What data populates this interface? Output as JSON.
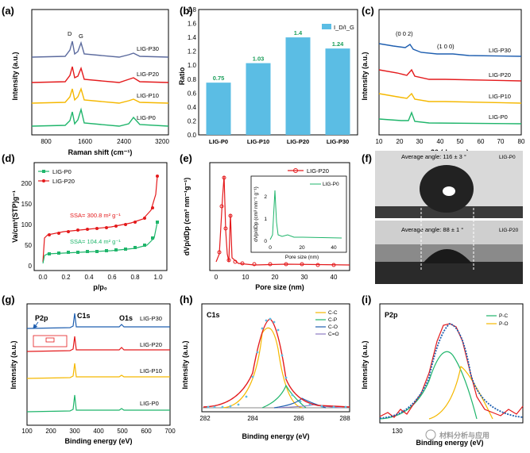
{
  "panels": {
    "a": {
      "label": "(a)",
      "xlabel": "Raman shift (cm⁻¹)",
      "ylabel": "Intensity (a.u.)",
      "xticks": [
        "800",
        "1600",
        "2400",
        "3200"
      ],
      "peak_d": "D",
      "peak_g": "G",
      "series": [
        "LIG-P30",
        "LIG-P20",
        "LIG-P10",
        "LIG-P0"
      ]
    },
    "b": {
      "label": "(b)",
      "ylabel": "Ratio",
      "legend": "I_D/I_G",
      "yticks": [
        "0.0",
        "0.2",
        "0.4",
        "0.6",
        "0.8",
        "1.0",
        "1.2",
        "1.4",
        "1.6",
        "1.8"
      ]
    },
    "c": {
      "label": "(c)",
      "xlabel": "2θ (degree)",
      "ylabel": "Intensity (a.u.)",
      "xticks": [
        "10",
        "20",
        "30",
        "40",
        "50",
        "60",
        "70",
        "80"
      ],
      "peak1": "(0 0 2)",
      "peak2": "(1 0 0)",
      "series": [
        "LIG-P30",
        "LIG-P20",
        "LIG-P10",
        "LIG-P0"
      ]
    },
    "d": {
      "label": "(d)",
      "xlabel": "p/p₀",
      "ylabel": "Va/cm³(STP)g⁻¹",
      "xticks": [
        "0.0",
        "0.2",
        "0.4",
        "0.6",
        "0.8",
        "1.0"
      ],
      "yticks": [
        "0",
        "50",
        "100",
        "150",
        "200"
      ],
      "legend": [
        "LIG-P0",
        "LIG-P20"
      ],
      "ssa_p20": "SSA= 300.8 m² g⁻¹",
      "ssa_p0": "SSA= 104.4 m² g⁻¹"
    },
    "e": {
      "label": "(e)",
      "xlabel": "Pore size (nm)",
      "ylabel": "dVp/dDp (cm³ nm⁻¹g⁻¹)",
      "xticks": [
        "0",
        "10",
        "20",
        "30",
        "40"
      ],
      "legend": "LIG-P20",
      "inset": {
        "legend": "LIG-P0",
        "xlabel": "Pore size (nm)",
        "ylabel": "dVp/dDp (cm³ nm⁻¹ g⁻¹)",
        "yticks": [
          "0",
          "1",
          "2"
        ],
        "xticks": [
          "0",
          "20",
          "40"
        ]
      }
    },
    "f": {
      "label": "(f)",
      "top_angle": "Average  angle: 116 ± 3 °",
      "top_sample": "LIG-P0",
      "bottom_angle": "Average  angle: 88 ± 1 °",
      "bottom_sample": "LIG-P20"
    },
    "g": {
      "label": "(g)",
      "xlabel": "Binding energy (eV)",
      "ylabel": "Intensity (a.u.)",
      "xticks": [
        "100",
        "200",
        "300",
        "400",
        "500",
        "600",
        "700"
      ],
      "p2p": "P2p",
      "c1s": "C1s",
      "o1s": "O1s",
      "series": [
        "LIG-P30",
        "LIG-P20",
        "LIG-P10",
        "LIG-P0"
      ]
    },
    "h": {
      "label": "(h)",
      "title": "C1s",
      "xlabel": "Binding energy (eV)",
      "ylabel": "Intensity (a.u.)",
      "xticks": [
        "282",
        "284",
        "286",
        "288"
      ],
      "legend": [
        "C-C",
        "C-P",
        "C-O",
        "C=O"
      ]
    },
    "i": {
      "label": "(i)",
      "title": "P2p",
      "xlabel": "Binding energy (eV)",
      "ylabel": "Intensity (a.u.)",
      "xticks": [
        "130"
      ],
      "legend": [
        "P-C",
        "P-O"
      ],
      "watermark": "材料分析与应用"
    }
  },
  "colors": {
    "p30": "#5c6b9e",
    "p20": "#e41a1c",
    "p10": "#f5b800",
    "p0": "#1fb56b",
    "bar": "#5bbde4"
  },
  "chart_data": [
    {
      "type": "bar",
      "title": "",
      "xlabel": "",
      "ylabel": "Ratio",
      "categories": [
        "LIG-P0",
        "LIG-P10",
        "LIG-P20",
        "LIG-P30"
      ],
      "series": [
        {
          "name": "I_D/I_G",
          "values": [
            0.75,
            1.03,
            1.4,
            1.24
          ]
        }
      ],
      "value_labels": [
        "0.75",
        "1.03",
        "1.4",
        "1.24"
      ],
      "ylim": [
        0,
        1.8
      ]
    }
  ]
}
